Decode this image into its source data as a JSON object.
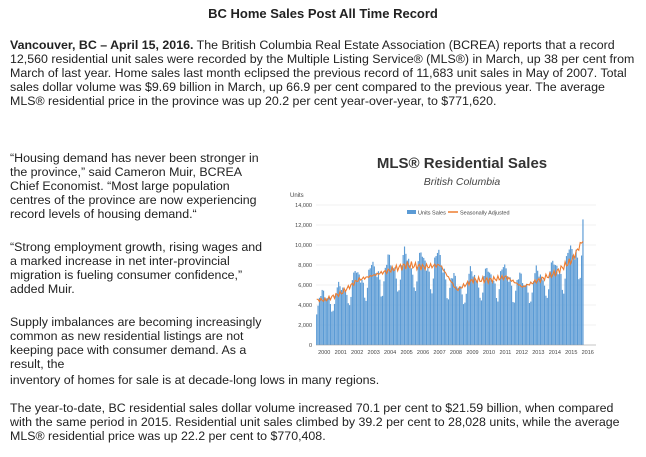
{
  "article": {
    "headline": "BC Home Sales Post All Time Record",
    "dateline": "Vancouver, BC – April 15, 2016.",
    "lead_text": " The British Columbia Real Estate Association (BCREA) reports that a record 12,560 residential unit sales were recorded by the Multiple Listing Service® (MLS®) in March, up 38 per cent from March of last year. Home sales last month eclipsed the previous record of 11,683 unit sales in May of 2007. Total sales dollar volume was $9.69 billion in March, up 66.9 per cent compared to the previous year. The average MLS® residential price in the province was up 20.2 per cent year-over-year, to $771,620.",
    "quote1": "“Housing demand has never been stronger in the province,” said Cameron Muir, BCREA Chief Economist. “Most large population centres of the province are now experiencing record levels of housing demand.“",
    "quote2": "“Strong employment growth, rising wages and a marked increase in net inter-provincial migration is fueling consumer confidence,” added Muir.",
    "supply_part1": "Supply imbalances are becoming increasingly common as new residential listings are not keeping pace with consumer demand. As a result, the",
    "supply_part2": "inventory of homes for sale is at decade-long lows in many regions.",
    "closing": "The year-to-date, BC residential sales dollar volume increased 70.1 per cent to $21.59 billion, when compared with the same period in 2015. Residential unit sales climbed by 39.2 per cent to 28,028 units, while the average MLS® residential price was up 22.2 per cent to $770,408."
  },
  "chart_data": {
    "type": "bar",
    "title": "MLS® Residential Sales",
    "subtitle": "British Columbia",
    "ylabel": "Units",
    "ylim": [
      0,
      14000
    ],
    "yticks": [
      "0",
      "2,000",
      "4,000",
      "6,000",
      "8,000",
      "10,000",
      "12,000",
      "14,000"
    ],
    "xticks": [
      "2000",
      "2001",
      "2002",
      "2003",
      "2004",
      "2005",
      "2006",
      "2007",
      "2008",
      "2009",
      "2010",
      "2011",
      "2012",
      "2013",
      "2014",
      "2015",
      "2016"
    ],
    "legend": [
      "Units Sales",
      "Seasonally Adjusted"
    ],
    "legend_position": "top-right",
    "bar_color": "#5b9bd5",
    "line_color": "#ed7d31",
    "annual_seasonally_adjusted": [
      {
        "year": 2000,
        "value": 4500
      },
      {
        "year": 2001,
        "value": 5200
      },
      {
        "year": 2002,
        "value": 6500
      },
      {
        "year": 2003,
        "value": 7000
      },
      {
        "year": 2004,
        "value": 7500
      },
      {
        "year": 2005,
        "value": 8000
      },
      {
        "year": 2006,
        "value": 7800
      },
      {
        "year": 2007,
        "value": 8000
      },
      {
        "year": 2008,
        "value": 5500
      },
      {
        "year": 2009,
        "value": 6500
      },
      {
        "year": 2010,
        "value": 6500
      },
      {
        "year": 2011,
        "value": 6800
      },
      {
        "year": 2012,
        "value": 5800
      },
      {
        "year": 2013,
        "value": 6500
      },
      {
        "year": 2014,
        "value": 7200
      },
      {
        "year": 2015,
        "value": 8500
      },
      {
        "year": 2016,
        "value": 11500
      }
    ],
    "last_value": 12560
  }
}
